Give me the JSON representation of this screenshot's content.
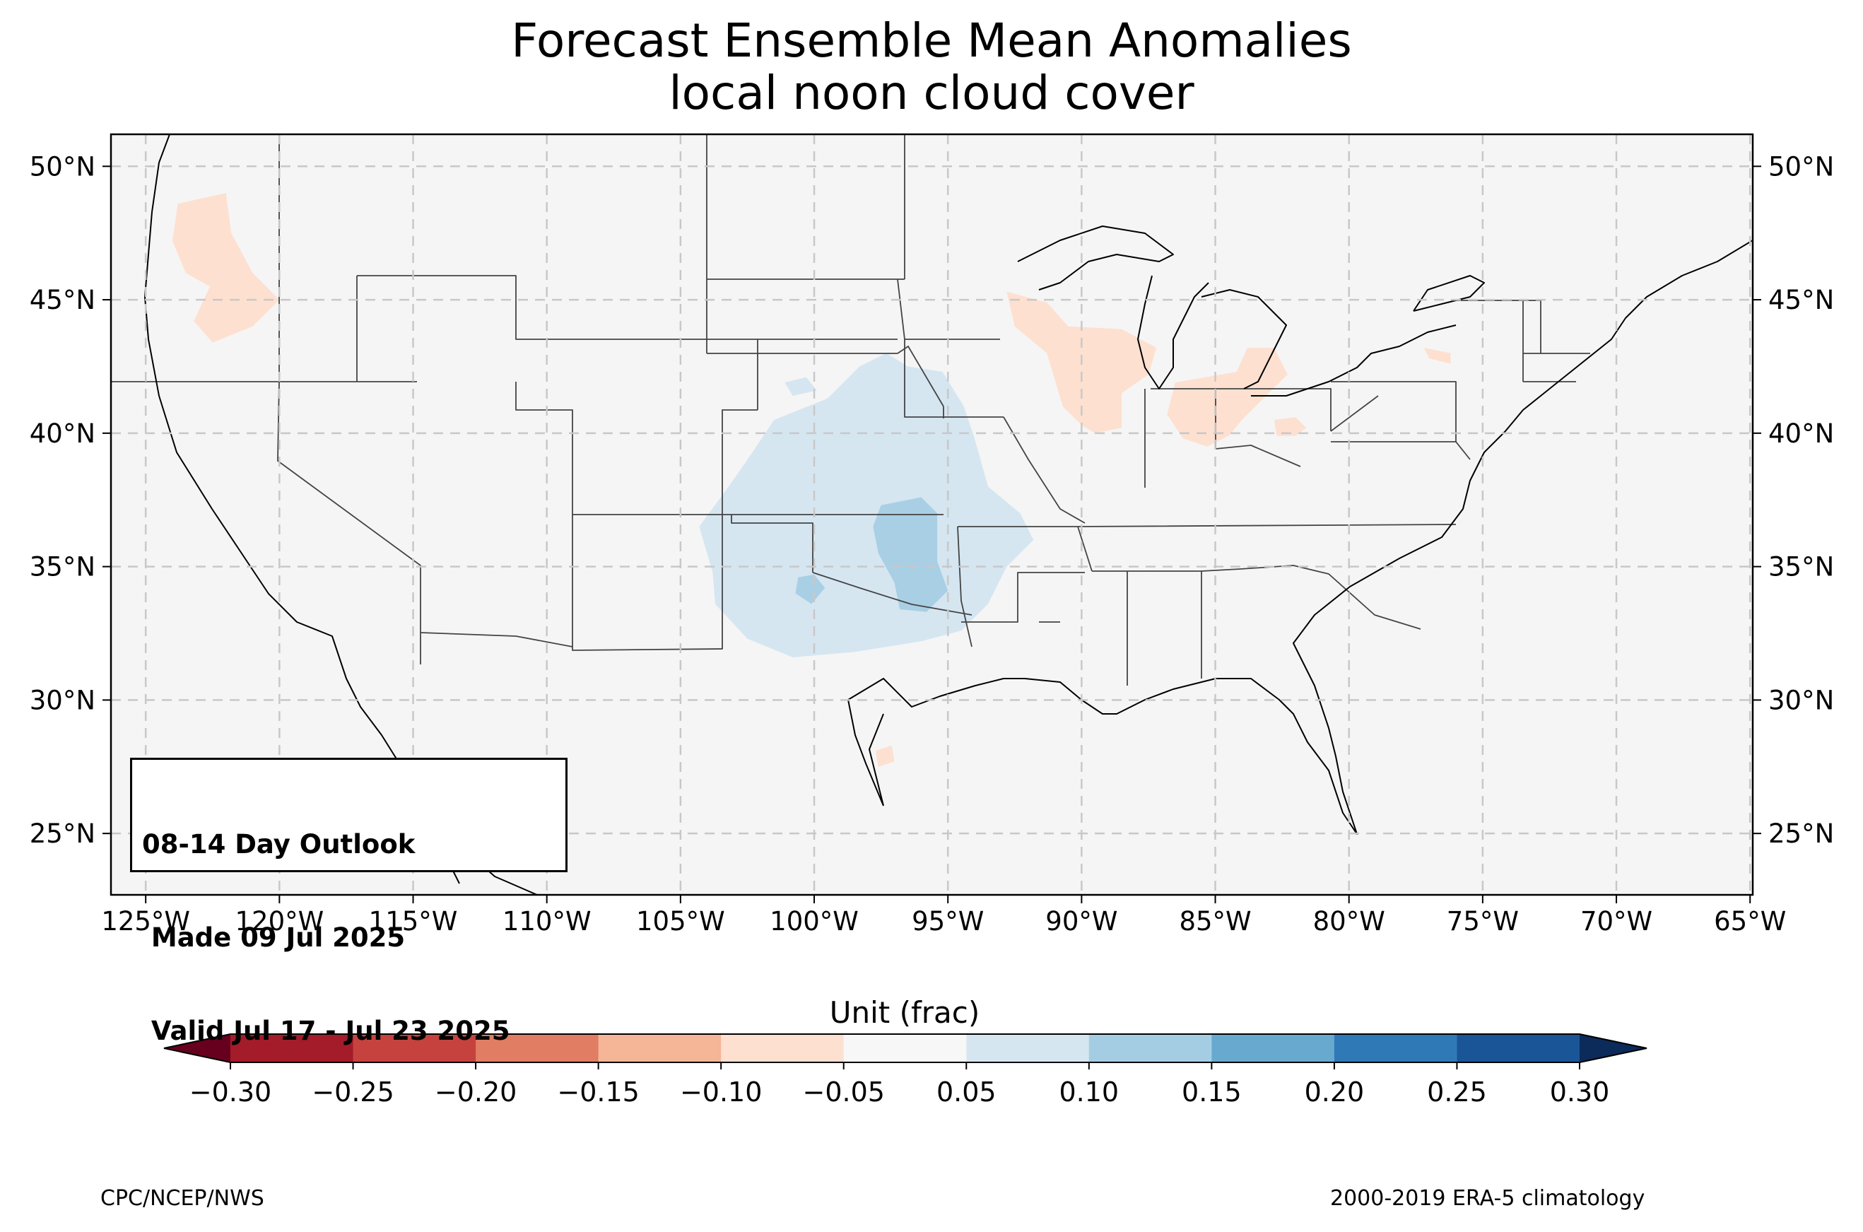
{
  "title": {
    "line1": "Forecast Ensemble Mean Anomalies",
    "line2": "local noon cloud cover"
  },
  "outlook_box": {
    "line1": "08-14 Day Outlook",
    "line2": " Made 09 Jul 2025",
    "line3": " Valid Jul 17 - Jul 23 2025"
  },
  "axes": {
    "lon_min": -126.3,
    "lon_max": -64.9,
    "lat_min": 22.7,
    "lat_max": 51.2,
    "lon_ticks": [
      -125,
      -120,
      -115,
      -110,
      -105,
      -100,
      -95,
      -90,
      -85,
      -80,
      -75,
      -70,
      -65
    ],
    "lon_tick_labels": [
      "125°W",
      "120°W",
      "115°W",
      "110°W",
      "105°W",
      "100°W",
      "95°W",
      "90°W",
      "85°W",
      "80°W",
      "75°W",
      "70°W",
      "65°W"
    ],
    "lat_ticks": [
      25,
      30,
      35,
      40,
      45,
      50
    ],
    "lat_tick_labels": [
      "25°N",
      "30°N",
      "35°N",
      "40°N",
      "45°N",
      "50°N"
    ],
    "gridlines": true
  },
  "colorbar": {
    "label": "Unit (frac)",
    "levels": [
      -0.3,
      -0.25,
      -0.2,
      -0.15,
      -0.1,
      -0.05,
      0.05,
      0.1,
      0.15,
      0.2,
      0.25,
      0.3
    ],
    "tick_labels": [
      "−0.30",
      "−0.25",
      "−0.20",
      "−0.15",
      "−0.10",
      "−0.05",
      "0.05",
      "0.10",
      "0.15",
      "0.20",
      "0.25",
      "0.30"
    ],
    "colors": [
      "#a41b2a",
      "#c5423e",
      "#e07d62",
      "#f5b597",
      "#fde0d0",
      "#f7f7f7",
      "#d5e6f1",
      "#a4cde3",
      "#67a9cf",
      "#2f79b6",
      "#1a5598"
    ],
    "under_color": "#67001f",
    "over_color": "#0c2a5a"
  },
  "map_colors": {
    "background": "#f5f5f5",
    "ocean_edge": "#000000",
    "light_blue": "#d5e6f1",
    "mid_blue": "#a9cfe4",
    "light_red": "#fde0d0"
  },
  "anomaly_regions": [
    {
      "category": "-0.10 to -0.05",
      "color": "light_red",
      "lonlat": [
        [
          -123.8,
          48.6
        ],
        [
          -122,
          49.0
        ],
        [
          -121.8,
          47.5
        ],
        [
          -121,
          46
        ],
        [
          -120,
          45
        ],
        [
          -121,
          44
        ],
        [
          -122.5,
          43.4
        ],
        [
          -123.2,
          44.2
        ],
        [
          -122.6,
          45.5
        ],
        [
          -123.5,
          46
        ],
        [
          -124,
          47.2
        ]
      ]
    },
    {
      "category": "-0.10 to -0.05",
      "color": "light_red",
      "lonlat": [
        [
          -92.8,
          45.3
        ],
        [
          -91.3,
          44.9
        ],
        [
          -90.5,
          44
        ],
        [
          -88.5,
          43.9
        ],
        [
          -87.2,
          43.2
        ],
        [
          -87.5,
          42.2
        ],
        [
          -88.5,
          41.5
        ],
        [
          -88.5,
          40.2
        ],
        [
          -89.5,
          40
        ],
        [
          -90,
          40.3
        ],
        [
          -90.7,
          41
        ],
        [
          -91,
          42
        ],
        [
          -91.3,
          43
        ],
        [
          -92.5,
          44
        ]
      ]
    },
    {
      "category": "-0.10 to -0.05",
      "color": "light_red",
      "lonlat": [
        [
          -86.5,
          41.9
        ],
        [
          -84.2,
          42.3
        ],
        [
          -83.8,
          43.2
        ],
        [
          -82.8,
          43.2
        ],
        [
          -82.3,
          42.2
        ],
        [
          -83.2,
          41.3
        ],
        [
          -84,
          40.5
        ],
        [
          -84.5,
          39.9
        ],
        [
          -85.3,
          39.5
        ],
        [
          -86.2,
          39.8
        ],
        [
          -86.8,
          40.7
        ]
      ]
    },
    {
      "category": "-0.10 to -0.05",
      "color": "light_red",
      "lonlat": [
        [
          -82.8,
          40.5
        ],
        [
          -82,
          40.6
        ],
        [
          -81.6,
          40.2
        ],
        [
          -82,
          39.9
        ],
        [
          -82.7,
          39.9
        ]
      ]
    },
    {
      "category": "-0.10 to -0.05",
      "color": "light_red",
      "lonlat": [
        [
          -77.2,
          43.2
        ],
        [
          -76.2,
          43.0
        ],
        [
          -76.2,
          42.6
        ],
        [
          -77.0,
          42.8
        ]
      ]
    },
    {
      "category": "-0.10 to -0.05",
      "color": "light_red",
      "lonlat": [
        [
          -97.7,
          28.1
        ],
        [
          -97.1,
          28.3
        ],
        [
          -97.0,
          27.7
        ],
        [
          -97.6,
          27.5
        ]
      ]
    },
    {
      "category": "0.05 to 0.10",
      "color": "light_blue",
      "lonlat": [
        [
          -96.5,
          42.5
        ],
        [
          -95.2,
          42.3
        ],
        [
          -94.4,
          41
        ],
        [
          -94,
          39.8
        ],
        [
          -93.5,
          38
        ],
        [
          -92.3,
          37
        ],
        [
          -91.8,
          36
        ],
        [
          -92.8,
          35
        ],
        [
          -93.5,
          33.6
        ],
        [
          -94.5,
          32.6
        ],
        [
          -96,
          32.2
        ],
        [
          -98.5,
          31.8
        ],
        [
          -100.8,
          31.6
        ],
        [
          -102.5,
          32.3
        ],
        [
          -103.7,
          33.6
        ],
        [
          -103.8,
          34.8
        ],
        [
          -104.3,
          36.5
        ],
        [
          -103.2,
          38
        ],
        [
          -102.5,
          39
        ],
        [
          -101.5,
          40.5
        ],
        [
          -99.5,
          41.3
        ],
        [
          -98.3,
          42.5
        ],
        [
          -97.3,
          43
        ]
      ]
    },
    {
      "category": "0.05 to 0.10",
      "color": "light_blue",
      "lonlat": [
        [
          -101.1,
          41.9
        ],
        [
          -100.3,
          42.1
        ],
        [
          -99.9,
          41.6
        ],
        [
          -100.8,
          41.4
        ]
      ]
    },
    {
      "category": "0.10 to 0.15",
      "color": "mid_blue",
      "lonlat": [
        [
          -97.5,
          37.3
        ],
        [
          -96,
          37.6
        ],
        [
          -95.4,
          37
        ],
        [
          -95.4,
          35.2
        ],
        [
          -95.0,
          34.1
        ],
        [
          -95.8,
          33.3
        ],
        [
          -96.8,
          33.4
        ],
        [
          -97,
          34.4
        ],
        [
          -97.6,
          35.5
        ],
        [
          -97.8,
          36.5
        ]
      ]
    },
    {
      "category": "0.10 to 0.15",
      "color": "mid_blue",
      "lonlat": [
        [
          -100.6,
          34.6
        ],
        [
          -100,
          34.7
        ],
        [
          -99.6,
          34.2
        ],
        [
          -100.1,
          33.6
        ],
        [
          -100.7,
          34.0
        ]
      ]
    }
  ],
  "credits": {
    "left": "CPC/NCEP/NWS",
    "right": "2000-2019 ERA-5 climatology"
  }
}
